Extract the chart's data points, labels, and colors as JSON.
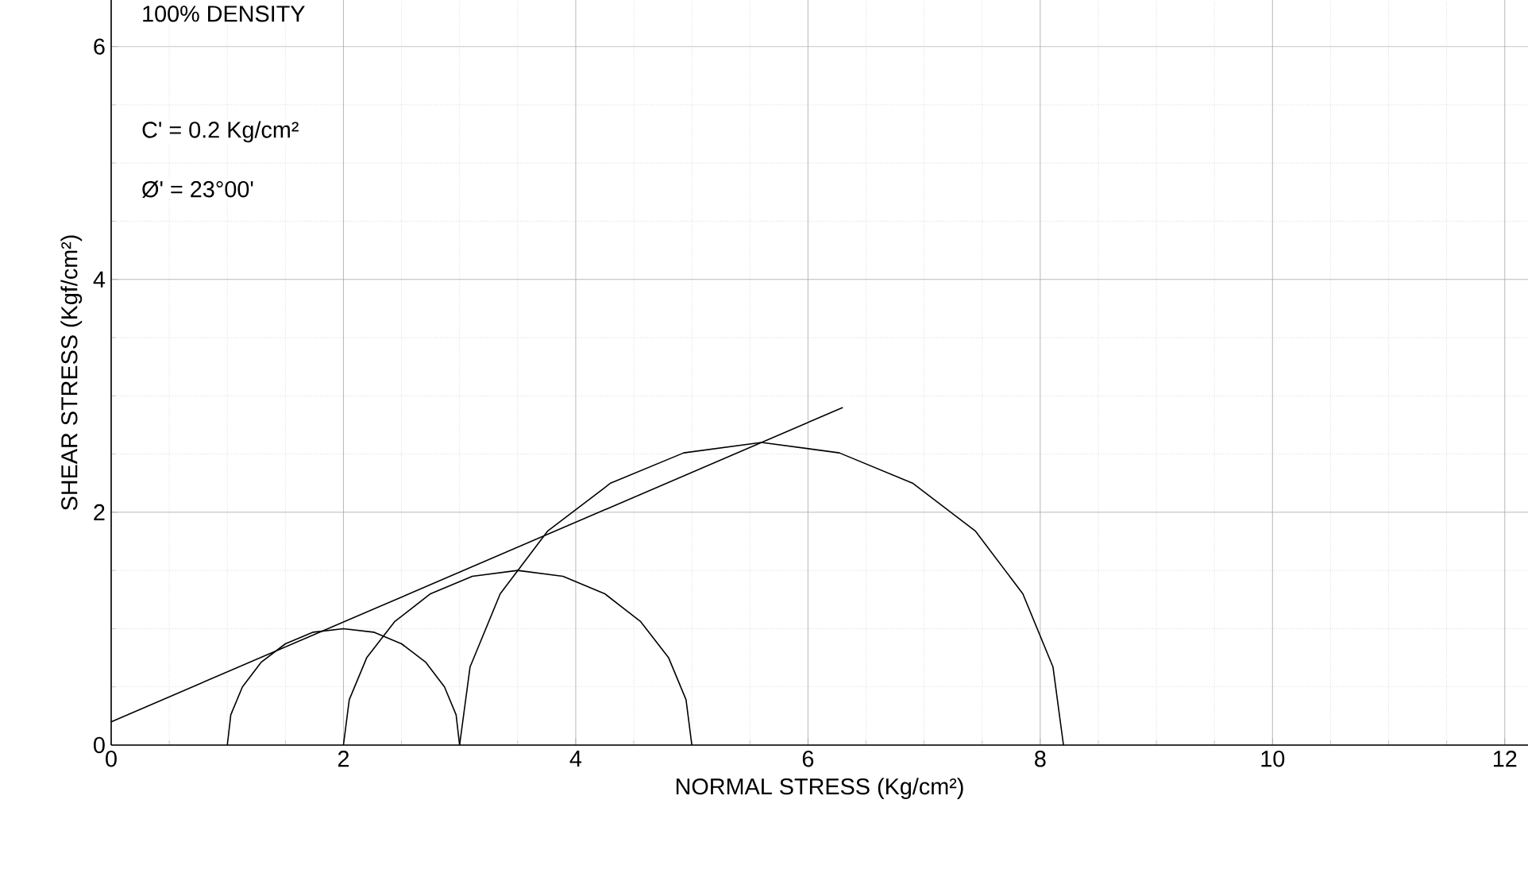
{
  "chart_data": {
    "type": "line",
    "xlabel": "NORMAL STRESS (Kg/cm²)",
    "ylabel": "SHEAR STRESS (Kgf/cm²)",
    "annotations": [
      "100% DENSITY",
      "C' = 0.2 Kg/cm²",
      "Ø' = 23°00'"
    ],
    "series": [
      {
        "color": "#000000",
        "x": [
          0,
          6.3
        ],
        "values": [
          0.2,
          2.9
        ]
      },
      {
        "color": "#000000",
        "x": [
          1,
          1.03,
          1.13,
          1.29,
          1.5,
          1.74,
          2,
          2.26,
          2.5,
          2.71,
          2.87,
          2.97,
          3
        ],
        "values": [
          0,
          0.26,
          0.5,
          0.71,
          0.87,
          0.97,
          1,
          0.97,
          0.87,
          0.71,
          0.5,
          0.26,
          0
        ]
      },
      {
        "color": "#000000",
        "x": [
          2,
          2.05,
          2.2,
          2.44,
          2.75,
          3.11,
          3.5,
          3.89,
          4.25,
          4.56,
          4.8,
          4.95,
          5
        ],
        "values": [
          0,
          0.39,
          0.75,
          1.06,
          1.3,
          1.45,
          1.5,
          1.45,
          1.3,
          1.06,
          0.75,
          0.39,
          0
        ]
      },
      {
        "color": "#000000",
        "x": [
          3,
          3.09,
          3.35,
          3.76,
          4.3,
          4.93,
          5.6,
          6.27,
          6.9,
          7.44,
          7.85,
          8.11,
          8.2
        ],
        "values": [
          0,
          0.67,
          1.3,
          1.84,
          2.25,
          2.51,
          2.6,
          2.51,
          2.25,
          1.84,
          1.3,
          0.67,
          0
        ]
      }
    ],
    "xlim": [
      0,
      12.2
    ],
    "ylim": [
      0,
      6.4
    ],
    "xticks": [
      0,
      2,
      4,
      6,
      8,
      10,
      12
    ],
    "yticks": [
      0,
      2,
      4,
      6
    ],
    "grid": true
  }
}
